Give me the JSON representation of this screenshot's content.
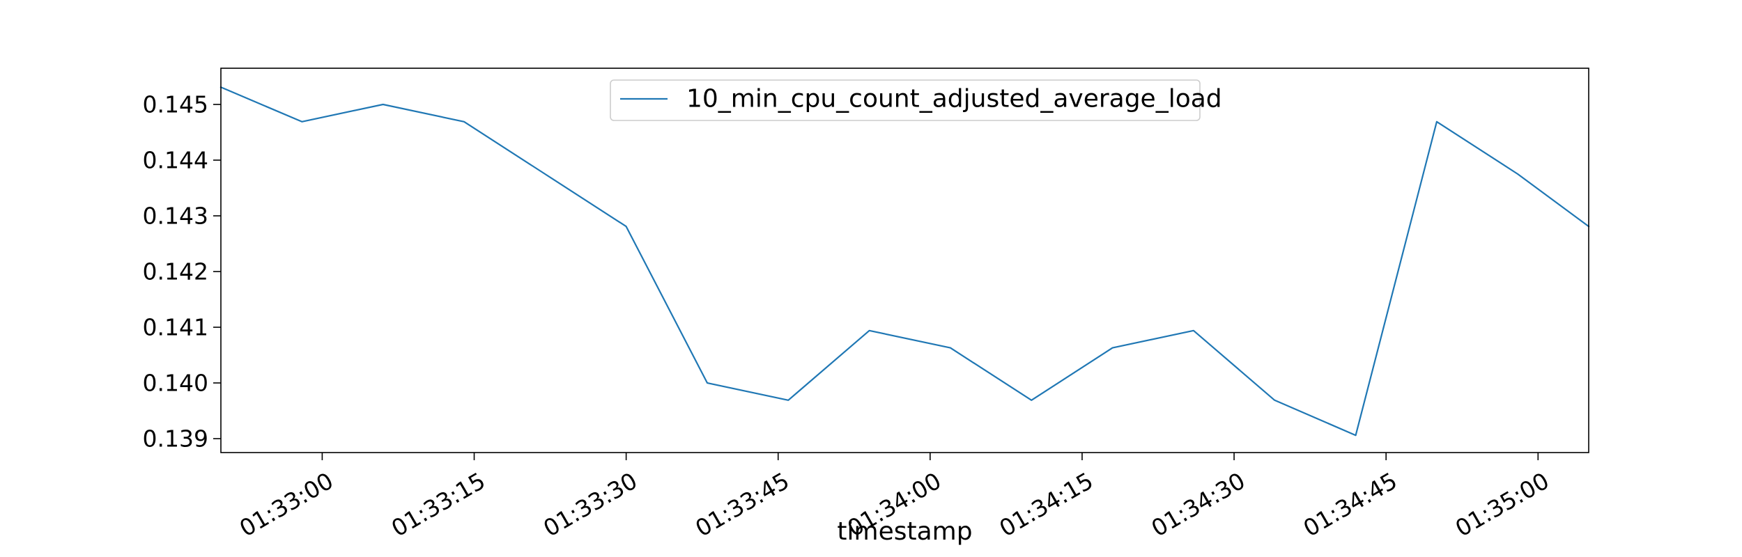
{
  "chart_data": {
    "type": "line",
    "title": "",
    "xlabel": "timestamp",
    "ylabel": "",
    "x_type": "time",
    "xlim": [
      "01:32:50",
      "01:35:05"
    ],
    "ylim": [
      0.13875,
      0.14565
    ],
    "x_ticks": [
      "01:33:00",
      "01:33:15",
      "01:33:30",
      "01:33:45",
      "01:34:00",
      "01:34:15",
      "01:34:30",
      "01:34:45",
      "01:35:00"
    ],
    "y_ticks": [
      0.139,
      0.14,
      0.141,
      0.142,
      0.143,
      0.144,
      0.145
    ],
    "y_tick_labels": [
      "0.139",
      "0.140",
      "0.141",
      "0.142",
      "0.143",
      "0.144",
      "0.145"
    ],
    "grid": false,
    "legend_position": "top-center",
    "series": [
      {
        "name": "10_min_cpu_count_adjusted_average_load",
        "color": "#1f77b4",
        "x": [
          "01:32:50",
          "01:32:58",
          "01:33:06",
          "01:33:14",
          "01:33:22",
          "01:33:30",
          "01:33:38",
          "01:33:46",
          "01:33:54",
          "01:34:02",
          "01:34:10",
          "01:34:18",
          "01:34:26",
          "01:34:34",
          "01:34:42",
          "01:34:50",
          "01:34:58",
          "01:35:05"
        ],
        "y": [
          0.14531,
          0.14469,
          0.145,
          0.14469,
          0.14375,
          0.14281,
          0.14,
          0.13969,
          0.14094,
          0.14063,
          0.13969,
          0.14063,
          0.14094,
          0.13969,
          0.13906,
          0.14469,
          0.14375,
          0.14281
        ]
      }
    ]
  }
}
